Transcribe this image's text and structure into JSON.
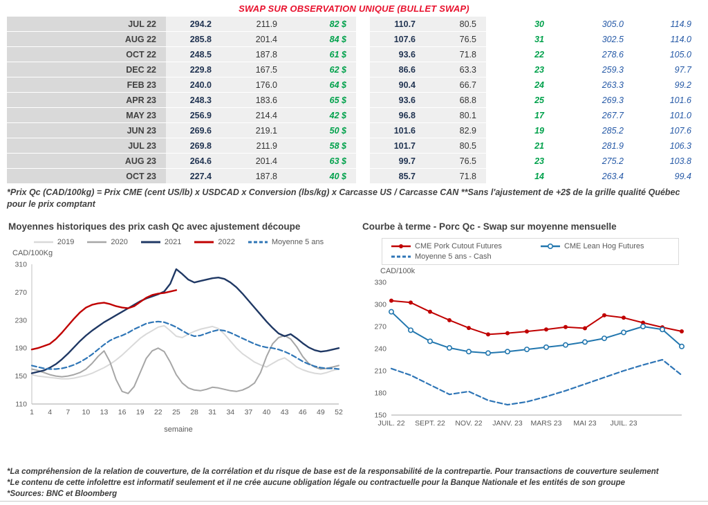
{
  "page": {
    "title": "SWAP SUR OBSERVATION UNIQUE (BULLET SWAP)",
    "table_footnote": "*Prix Qc (CAD/100kg) = Prix CME (cent US/lb) x USDCAD x Conversion (lbs/kg) x Carcasse US / Carcasse CAN **Sans l'ajustement de +2$ de la grille qualité Québec pour le prix comptant",
    "footers": [
      "*La compréhension de la relation de couverture, de la corrélation et du risque de base est de la responsabilité de la contrepartie. Pour transactions de couverture seulement",
      "*Le contenu de cette infolettre est informatif seulement et il ne crée aucune obligation légale ou contractuelle pour la Banque Nationale et les entités de son groupe",
      "*Sources: BNC et Bloomberg"
    ]
  },
  "colors": {
    "title_red": "#e8112d",
    "green_value": "#00a14b",
    "blue_value": "#2458a6",
    "bold_value_navy": "#1f3250",
    "month_bg": "#d9d9d9",
    "cell_bg": "#efefef"
  },
  "table": {
    "rows": [
      {
        "month": "JUL 22",
        "values": [
          "294.2",
          "211.9",
          "82 $",
          "110.7",
          "80.5",
          "30",
          "305.0",
          "114.9"
        ]
      },
      {
        "month": "AUG 22",
        "values": [
          "285.8",
          "201.4",
          "84 $",
          "107.6",
          "76.5",
          "31",
          "302.5",
          "114.0"
        ]
      },
      {
        "month": "OCT 22",
        "values": [
          "248.5",
          "187.8",
          "61 $",
          "93.6",
          "71.8",
          "22",
          "278.6",
          "105.0"
        ]
      },
      {
        "month": "DEC 22",
        "values": [
          "229.8",
          "167.5",
          "62 $",
          "86.6",
          "63.3",
          "23",
          "259.3",
          "97.7"
        ]
      },
      {
        "month": "FEB 23",
        "values": [
          "240.0",
          "176.0",
          "64 $",
          "90.4",
          "66.7",
          "24",
          "263.3",
          "99.2"
        ]
      },
      {
        "month": "APR 23",
        "values": [
          "248.3",
          "183.6",
          "65 $",
          "93.6",
          "68.8",
          "25",
          "269.3",
          "101.6"
        ]
      },
      {
        "month": "MAY 23",
        "values": [
          "256.9",
          "214.4",
          "42 $",
          "96.8",
          "80.1",
          "17",
          "267.7",
          "101.0"
        ]
      },
      {
        "month": "JUN 23",
        "values": [
          "269.6",
          "219.1",
          "50 $",
          "101.6",
          "82.9",
          "19",
          "285.2",
          "107.6"
        ]
      },
      {
        "month": "JUL 23",
        "values": [
          "269.8",
          "211.9",
          "58 $",
          "101.7",
          "80.5",
          "21",
          "281.9",
          "106.3"
        ]
      },
      {
        "month": "AUG 23",
        "values": [
          "264.6",
          "201.4",
          "63 $",
          "99.7",
          "76.5",
          "23",
          "275.2",
          "103.8"
        ]
      },
      {
        "month": "OCT 23",
        "values": [
          "227.4",
          "187.8",
          "40 $",
          "85.7",
          "71.8",
          "14",
          "263.4",
          "99.4"
        ]
      }
    ]
  },
  "chart_data": [
    {
      "type": "line",
      "title": "Moyennes historiques des prix cash Qc avec ajustement découpe",
      "ylabel": "CAD/100Kg",
      "xlabel": "semaine",
      "ylim": [
        110,
        310
      ],
      "yticks": [
        110,
        150,
        190,
        230,
        270,
        310
      ],
      "x_start": 1,
      "xticks": [
        [
          1,
          "1"
        ],
        [
          4,
          "4"
        ],
        [
          7,
          "7"
        ],
        [
          10,
          "10"
        ],
        [
          13,
          "13"
        ],
        [
          16,
          "16"
        ],
        [
          19,
          "19"
        ],
        [
          22,
          "22"
        ],
        [
          25,
          "25"
        ],
        [
          28,
          "28"
        ],
        [
          31,
          "31"
        ],
        [
          34,
          "34"
        ],
        [
          37,
          "37"
        ],
        [
          40,
          "40"
        ],
        [
          43,
          "43"
        ],
        [
          46,
          "46"
        ],
        [
          49,
          "49"
        ],
        [
          52,
          "52"
        ]
      ],
      "legend_position": "top",
      "grid": false,
      "series": [
        {
          "name": "2019",
          "color": "#d9d9d9",
          "width": 2,
          "values": [
            152,
            150,
            149,
            148,
            147,
            146,
            146,
            147,
            149,
            151,
            154,
            158,
            162,
            167,
            173,
            180,
            188,
            196,
            204,
            210,
            215,
            220,
            222,
            215,
            207,
            205,
            210,
            214,
            217,
            219,
            221,
            218,
            210,
            200,
            190,
            182,
            176,
            170,
            166,
            163,
            168,
            173,
            176,
            170,
            163,
            159,
            156,
            154,
            153,
            155,
            158,
            160
          ]
        },
        {
          "name": "2020",
          "color": "#a6a6a6",
          "width": 2,
          "values": [
            160,
            158,
            155,
            152,
            150,
            149,
            150,
            152,
            155,
            160,
            168,
            178,
            186,
            170,
            145,
            128,
            125,
            135,
            155,
            175,
            186,
            190,
            185,
            170,
            152,
            140,
            133,
            130,
            129,
            131,
            134,
            133,
            131,
            129,
            128,
            130,
            134,
            140,
            155,
            178,
            196,
            205,
            208,
            203,
            192,
            178,
            168,
            163,
            160,
            161,
            163,
            165
          ]
        },
        {
          "name": "2021",
          "color": "#1f3864",
          "width": 2.4,
          "values": [
            154,
            156,
            158,
            162,
            167,
            174,
            182,
            191,
            200,
            208,
            215,
            221,
            227,
            232,
            237,
            242,
            247,
            252,
            257,
            261,
            264,
            267,
            271,
            282,
            303,
            296,
            288,
            284,
            286,
            288,
            290,
            291,
            289,
            284,
            277,
            268,
            258,
            248,
            238,
            228,
            219,
            211,
            207,
            210,
            204,
            197,
            191,
            187,
            185,
            186,
            188,
            190
          ]
        },
        {
          "name": "2022",
          "color": "#c00000",
          "width": 2.4,
          "values": [
            188,
            190,
            193,
            196,
            203,
            212,
            222,
            232,
            241,
            248,
            252,
            254,
            255,
            253,
            250,
            248,
            247,
            250,
            256,
            262,
            266,
            268,
            269,
            271,
            273,
            null,
            null,
            null,
            null,
            null,
            null,
            null,
            null,
            null,
            null,
            null,
            null,
            null,
            null,
            null,
            null,
            null,
            null,
            null,
            null,
            null,
            null,
            null,
            null,
            null,
            null,
            null
          ]
        },
        {
          "name": "Moyenne 5 ans",
          "color": "#2e75b6",
          "width": 2.2,
          "dash": "7,4",
          "values": [
            165,
            163,
            161,
            160,
            160,
            161,
            163,
            166,
            170,
            175,
            181,
            188,
            195,
            201,
            205,
            208,
            212,
            217,
            221,
            225,
            227,
            228,
            227,
            224,
            220,
            215,
            210,
            207,
            208,
            211,
            214,
            216,
            215,
            212,
            208,
            204,
            200,
            196,
            193,
            191,
            190,
            188,
            185,
            181,
            176,
            171,
            167,
            164,
            162,
            161,
            161,
            160
          ]
        }
      ]
    },
    {
      "type": "line",
      "title": "Courbe à terme - Porc Qc - Swap sur moyenne mensuelle",
      "ylabel": "CAD/100k",
      "xlabel": "",
      "ylim": [
        150,
        330
      ],
      "yticks": [
        150,
        180,
        210,
        240,
        270,
        300,
        330
      ],
      "x_start": 0,
      "xticks": [
        [
          0,
          "JUIL. 22"
        ],
        [
          2,
          "SEPT. 22"
        ],
        [
          4,
          "NOV. 22"
        ],
        [
          6,
          "JANV. 23"
        ],
        [
          8,
          "MARS 23"
        ],
        [
          10,
          "MAI 23"
        ],
        [
          12,
          "JUIL. 23"
        ]
      ],
      "legend_position": "top",
      "grid": false,
      "series": [
        {
          "name": "CME Pork Cutout Futures",
          "color": "#c00000",
          "width": 2,
          "marker": "dot",
          "values": [
            305,
            302.5,
            290,
            278.6,
            268,
            259.3,
            261,
            263.3,
            266,
            269.3,
            267.7,
            285.2,
            281.9,
            275.2,
            269,
            263.4
          ]
        },
        {
          "name": "CME Lean Hog Futures",
          "color": "#2176ae",
          "width": 2,
          "marker": "open",
          "values": [
            290,
            265,
            250,
            241,
            236,
            234,
            236,
            239,
            242,
            245,
            249,
            254,
            262,
            270,
            266,
            243
          ]
        },
        {
          "name": "Moyenne 5 ans - Cash",
          "color": "#2e75b6",
          "width": 2.2,
          "dash": "7,4",
          "values": [
            213,
            204,
            191,
            178,
            182,
            170,
            164,
            168,
            175,
            183,
            192,
            201,
            210,
            218,
            225,
            204
          ]
        }
      ]
    }
  ]
}
